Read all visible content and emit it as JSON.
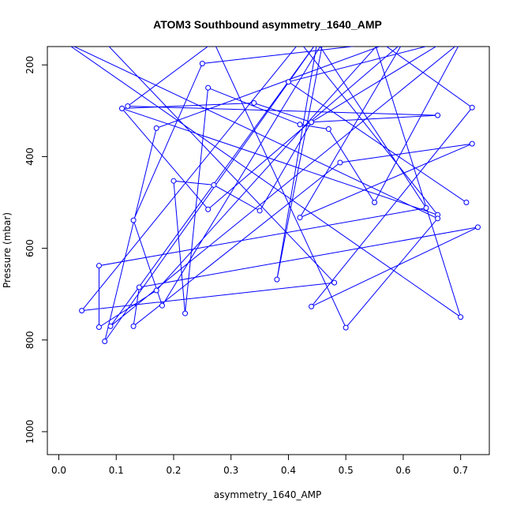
{
  "chart_data": {
    "type": "line",
    "title": "ATOM3 Southbound asymmetry_1640_AMP",
    "xlabel": "asymmetry_1640_AMP",
    "ylabel": "Pressure (mbar)",
    "xlim": [
      -0.02,
      0.75
    ],
    "ylim": [
      1050,
      160
    ],
    "y_inverted": true,
    "grid": false,
    "x_ticks": [
      "0.0",
      "0.1",
      "0.2",
      "0.3",
      "0.4",
      "0.5",
      "0.6",
      "0.7"
    ],
    "x_tick_values": [
      0.0,
      0.1,
      0.2,
      0.3,
      0.4,
      0.5,
      0.6,
      0.7
    ],
    "y_ticks": [
      "200",
      "400",
      "600",
      "800",
      "1000"
    ],
    "y_tick_values": [
      200,
      400,
      600,
      800,
      1000
    ],
    "series_color": "#0000ff",
    "series": [
      {
        "x": [
          0.11,
          0.34,
          0.44,
          0.35,
          0.27,
          0.2,
          0.22,
          0.26,
          0.42,
          0.47,
          0.55,
          0.7,
          0.09,
          0.45,
          0.08,
          0.17,
          0.58,
          0.25,
          0.13,
          0.18,
          0.46,
          0.38,
          0.45,
          0.64,
          0.07,
          0.07,
          0.17,
          0.56,
          0.72,
          0.44,
          0.73,
          0.14,
          0.13,
          0.49,
          0.72,
          0.42,
          0.6,
          0.26,
          0.11,
          0.66,
          0.42,
          0.04,
          0.48,
          0.08,
          0.55,
          0.7,
          0.01,
          0.66,
          0.5,
          0.27,
          0.12,
          0.66,
          0.44,
          0.67,
          0.4,
          0.71
        ],
        "y": [
          295,
          283,
          325,
          518,
          462,
          453,
          742,
          250,
          330,
          340,
          500,
          150,
          770,
          150,
          803,
          338,
          150,
          197,
          539,
          725,
          150,
          668,
          150,
          512,
          638,
          772,
          692,
          150,
          293,
          727,
          554,
          685,
          770,
          413,
          372,
          533,
          150,
          515,
          295,
          527,
          150,
          736,
          675,
          150,
          150,
          750,
          150,
          535,
          773,
          150,
          290,
          310,
          325,
          150,
          237,
          500
        ]
      }
    ]
  }
}
